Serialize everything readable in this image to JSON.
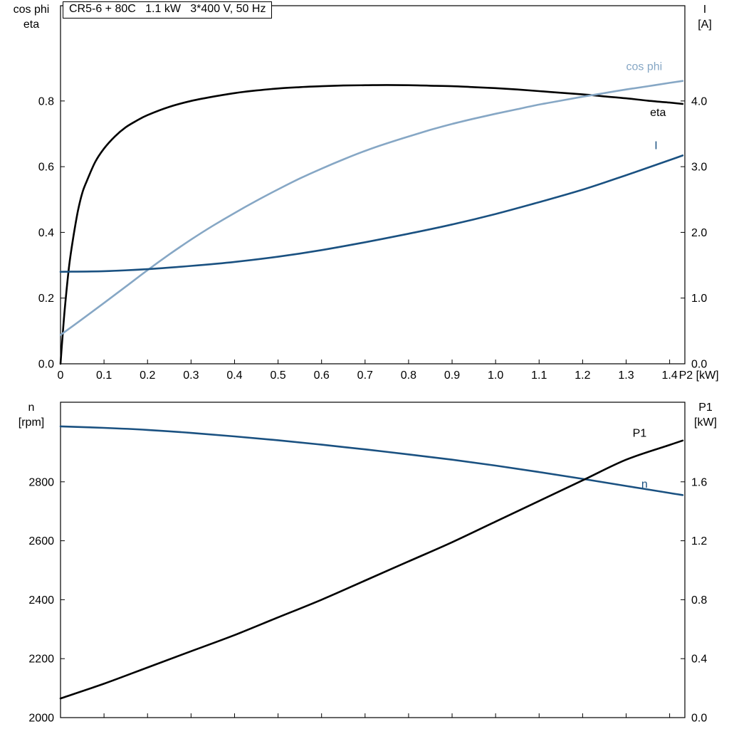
{
  "title_box": "CR5-6 + 80C   1.1 kW   3*400 V, 50 Hz",
  "colors": {
    "eta": "#000000",
    "cos_phi": "#86a7c5",
    "current": "#1a5181",
    "n": "#1a5181",
    "p1": "#000000",
    "frame": "#000000",
    "text": "#000000"
  },
  "chart_data": [
    {
      "id": "motor-top",
      "type": "line",
      "title": "CR5-6 + 80C   1.1 kW   3*400 V, 50 Hz",
      "x_axis": {
        "label": "P2 [kW]",
        "range": [
          0,
          1.435
        ],
        "tick_values": [
          0,
          0.1,
          0.2,
          0.3,
          0.4,
          0.5,
          0.6,
          0.7,
          0.8,
          0.9,
          1.0,
          1.1,
          1.2,
          1.3,
          1.4
        ],
        "tick_labels": [
          "0",
          "0.1",
          "0.2",
          "0.3",
          "0.4",
          "0.5",
          "0.6",
          "0.7",
          "0.8",
          "0.9",
          "1.0",
          "1.1",
          "1.2",
          "1.3",
          "1.4"
        ],
        "show_tick_labels": true
      },
      "left_axis": {
        "title_lines": [
          "cos phi",
          "eta"
        ],
        "range": [
          0,
          1.09
        ],
        "tick_values": [
          0,
          0.2,
          0.4,
          0.6,
          0.8
        ],
        "tick_labels": [
          "0.0",
          "0.2",
          "0.4",
          "0.6",
          "0.8"
        ]
      },
      "right_axis": {
        "title_lines": [
          "I",
          "[A]"
        ],
        "range": [
          0,
          5.45
        ],
        "tick_values": [
          0,
          1,
          2,
          3,
          4
        ],
        "tick_labels": [
          "0.0",
          "1.0",
          "2.0",
          "3.0",
          "4.0"
        ]
      },
      "series": [
        {
          "name": "eta",
          "label": "eta",
          "axis": "left",
          "color_key": "eta",
          "label_at": [
            1.355,
            0.765
          ],
          "points": [
            [
              0,
              0
            ],
            [
              0.005,
              0.09
            ],
            [
              0.01,
              0.17
            ],
            [
              0.02,
              0.3
            ],
            [
              0.03,
              0.39
            ],
            [
              0.04,
              0.465
            ],
            [
              0.05,
              0.52
            ],
            [
              0.06,
              0.555
            ],
            [
              0.08,
              0.615
            ],
            [
              0.1,
              0.655
            ],
            [
              0.125,
              0.692
            ],
            [
              0.15,
              0.72
            ],
            [
              0.175,
              0.74
            ],
            [
              0.2,
              0.757
            ],
            [
              0.25,
              0.782
            ],
            [
              0.3,
              0.8
            ],
            [
              0.35,
              0.813
            ],
            [
              0.4,
              0.824
            ],
            [
              0.45,
              0.832
            ],
            [
              0.5,
              0.838
            ],
            [
              0.55,
              0.842
            ],
            [
              0.6,
              0.845
            ],
            [
              0.65,
              0.847
            ],
            [
              0.7,
              0.848
            ],
            [
              0.75,
              0.8485
            ],
            [
              0.8,
              0.848
            ],
            [
              0.85,
              0.8465
            ],
            [
              0.9,
              0.845
            ],
            [
              0.95,
              0.842
            ],
            [
              1.0,
              0.839
            ],
            [
              1.05,
              0.835
            ],
            [
              1.1,
              0.83
            ],
            [
              1.15,
              0.825
            ],
            [
              1.2,
              0.82
            ],
            [
              1.25,
              0.814
            ],
            [
              1.3,
              0.808
            ],
            [
              1.35,
              0.801
            ],
            [
              1.4,
              0.795
            ],
            [
              1.43,
              0.791
            ]
          ]
        },
        {
          "name": "cos phi",
          "label": "cos phi",
          "axis": "left",
          "color_key": "cos_phi",
          "label_at": [
            1.3,
            0.905
          ],
          "points": [
            [
              0,
              0.088
            ],
            [
              0.05,
              0.136
            ],
            [
              0.1,
              0.185
            ],
            [
              0.15,
              0.235
            ],
            [
              0.2,
              0.285
            ],
            [
              0.25,
              0.333
            ],
            [
              0.3,
              0.378
            ],
            [
              0.35,
              0.42
            ],
            [
              0.4,
              0.459
            ],
            [
              0.45,
              0.496
            ],
            [
              0.5,
              0.531
            ],
            [
              0.55,
              0.564
            ],
            [
              0.6,
              0.594
            ],
            [
              0.65,
              0.622
            ],
            [
              0.7,
              0.648
            ],
            [
              0.75,
              0.671
            ],
            [
              0.8,
              0.692
            ],
            [
              0.85,
              0.712
            ],
            [
              0.9,
              0.73
            ],
            [
              0.95,
              0.746
            ],
            [
              1.0,
              0.761
            ],
            [
              1.05,
              0.775
            ],
            [
              1.1,
              0.789
            ],
            [
              1.15,
              0.801
            ],
            [
              1.2,
              0.813
            ],
            [
              1.25,
              0.824
            ],
            [
              1.3,
              0.835
            ],
            [
              1.35,
              0.845
            ],
            [
              1.4,
              0.855
            ],
            [
              1.43,
              0.861
            ]
          ]
        },
        {
          "name": "I",
          "label": "I",
          "axis": "right",
          "color_key": "current",
          "label_at": [
            1.365,
            3.32
          ],
          "points": [
            [
              0,
              1.4
            ],
            [
              0.1,
              1.41
            ],
            [
              0.2,
              1.44
            ],
            [
              0.3,
              1.49
            ],
            [
              0.4,
              1.55
            ],
            [
              0.5,
              1.63
            ],
            [
              0.6,
              1.73
            ],
            [
              0.7,
              1.85
            ],
            [
              0.8,
              1.98
            ],
            [
              0.9,
              2.12
            ],
            [
              1.0,
              2.28
            ],
            [
              1.1,
              2.46
            ],
            [
              1.2,
              2.65
            ],
            [
              1.3,
              2.87
            ],
            [
              1.4,
              3.1
            ],
            [
              1.43,
              3.17
            ]
          ]
        }
      ]
    },
    {
      "id": "motor-bottom",
      "type": "line",
      "title": "",
      "x_axis": {
        "label": "",
        "range": [
          0,
          1.435
        ],
        "tick_values": [
          0,
          0.1,
          0.2,
          0.3,
          0.4,
          0.5,
          0.6,
          0.7,
          0.8,
          0.9,
          1.0,
          1.1,
          1.2,
          1.3,
          1.4
        ],
        "tick_labels": [],
        "show_tick_labels": false
      },
      "left_axis": {
        "title_lines": [
          "n",
          "[rpm]"
        ],
        "range": [
          2000,
          3070
        ],
        "tick_values": [
          2000,
          2200,
          2400,
          2600,
          2800
        ],
        "tick_labels": [
          "2000",
          "2200",
          "2400",
          "2600",
          "2800"
        ]
      },
      "right_axis": {
        "title_lines": [
          "P1",
          "[kW]"
        ],
        "range": [
          0,
          2.14
        ],
        "tick_values": [
          0,
          0.4,
          0.8,
          1.2,
          1.6
        ],
        "tick_labels": [
          "0.0",
          "0.4",
          "0.8",
          "1.2",
          "1.6"
        ]
      },
      "series": [
        {
          "name": "n",
          "label": "n",
          "axis": "left",
          "color_key": "n",
          "label_at": [
            1.335,
            2792
          ],
          "points": [
            [
              0,
              2988
            ],
            [
              0.1,
              2983
            ],
            [
              0.2,
              2976
            ],
            [
              0.3,
              2966
            ],
            [
              0.4,
              2954
            ],
            [
              0.5,
              2941
            ],
            [
              0.6,
              2926
            ],
            [
              0.7,
              2910
            ],
            [
              0.8,
              2893
            ],
            [
              0.9,
              2875
            ],
            [
              1.0,
              2855
            ],
            [
              1.1,
              2833
            ],
            [
              1.2,
              2810
            ],
            [
              1.3,
              2786
            ],
            [
              1.4,
              2762
            ],
            [
              1.43,
              2755
            ]
          ]
        },
        {
          "name": "P1",
          "label": "P1",
          "axis": "right",
          "color_key": "p1",
          "label_at": [
            1.315,
            1.93
          ],
          "points": [
            [
              0,
              0.13
            ],
            [
              0.1,
              0.23
            ],
            [
              0.2,
              0.34
            ],
            [
              0.3,
              0.45
            ],
            [
              0.4,
              0.56
            ],
            [
              0.5,
              0.68
            ],
            [
              0.6,
              0.8
            ],
            [
              0.7,
              0.93
            ],
            [
              0.8,
              1.06
            ],
            [
              0.9,
              1.19
            ],
            [
              1.0,
              1.33
            ],
            [
              1.1,
              1.47
            ],
            [
              1.2,
              1.61
            ],
            [
              1.3,
              1.75
            ],
            [
              1.4,
              1.85
            ],
            [
              1.43,
              1.88
            ]
          ]
        }
      ]
    }
  ]
}
